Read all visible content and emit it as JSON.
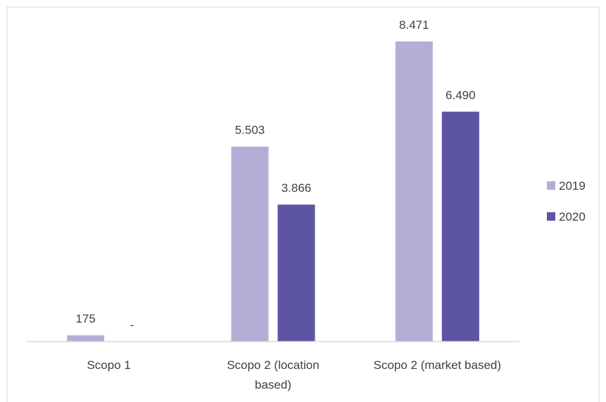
{
  "chart_data": {
    "type": "bar",
    "title": "",
    "xlabel": "",
    "ylabel": "",
    "categories": [
      [
        "Scopo 1"
      ],
      [
        "Scopo 2 (location",
        "based)"
      ],
      [
        "Scopo 2 (market based)"
      ]
    ],
    "series": [
      {
        "name": "2019",
        "values": [
          175,
          5503,
          8471
        ],
        "labels": [
          "175",
          "5.503",
          "8.471"
        ]
      },
      {
        "name": "2020",
        "values": [
          0,
          3866,
          6490
        ],
        "labels": [
          "-",
          "3.866",
          "6.490"
        ]
      }
    ],
    "ylim": [
      0,
      9000
    ],
    "grid": false,
    "legend": "right",
    "colors": {
      "2019": "#b3aed6",
      "2020": "#5e55a2",
      "axis": "#d9d9d9",
      "frame": "#d9d9d9"
    }
  }
}
